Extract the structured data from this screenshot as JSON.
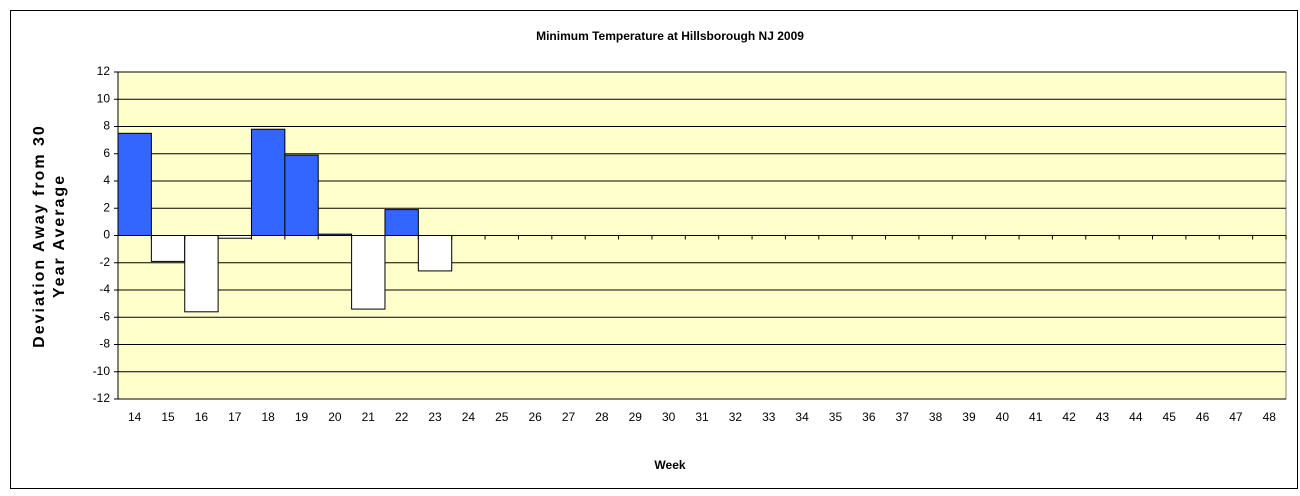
{
  "chart_data": {
    "type": "bar",
    "title": "Minimum Temperature at Hillsborough NJ 2009",
    "x_label": "Week",
    "y_label": [
      "Deviation Away from 30",
      "Year Average"
    ],
    "categories": [
      "14",
      "15",
      "16",
      "17",
      "18",
      "19",
      "20",
      "21",
      "22",
      "23",
      "24",
      "25",
      "26",
      "27",
      "28",
      "29",
      "30",
      "31",
      "32",
      "33",
      "34",
      "35",
      "36",
      "37",
      "38",
      "39",
      "40",
      "41",
      "42",
      "43",
      "44",
      "45",
      "46",
      "47",
      "48"
    ],
    "values": [
      7.5,
      -1.9,
      -5.6,
      -0.2,
      7.8,
      5.9,
      0.1,
      -5.4,
      1.9,
      -2.6,
      null,
      null,
      null,
      null,
      null,
      null,
      null,
      null,
      null,
      null,
      null,
      null,
      null,
      null,
      null,
      null,
      null,
      null,
      null,
      null,
      null,
      null,
      null,
      null,
      null
    ],
    "color": "#3366ff",
    "negative_color": "#ffffff",
    "plot_background": "#ffffcc",
    "ylim": [
      -12,
      12
    ],
    "yticks": [
      -12,
      -10,
      -8,
      -6,
      -4,
      -2,
      0,
      2,
      4,
      6,
      8,
      10,
      12
    ],
    "grid": true
  }
}
